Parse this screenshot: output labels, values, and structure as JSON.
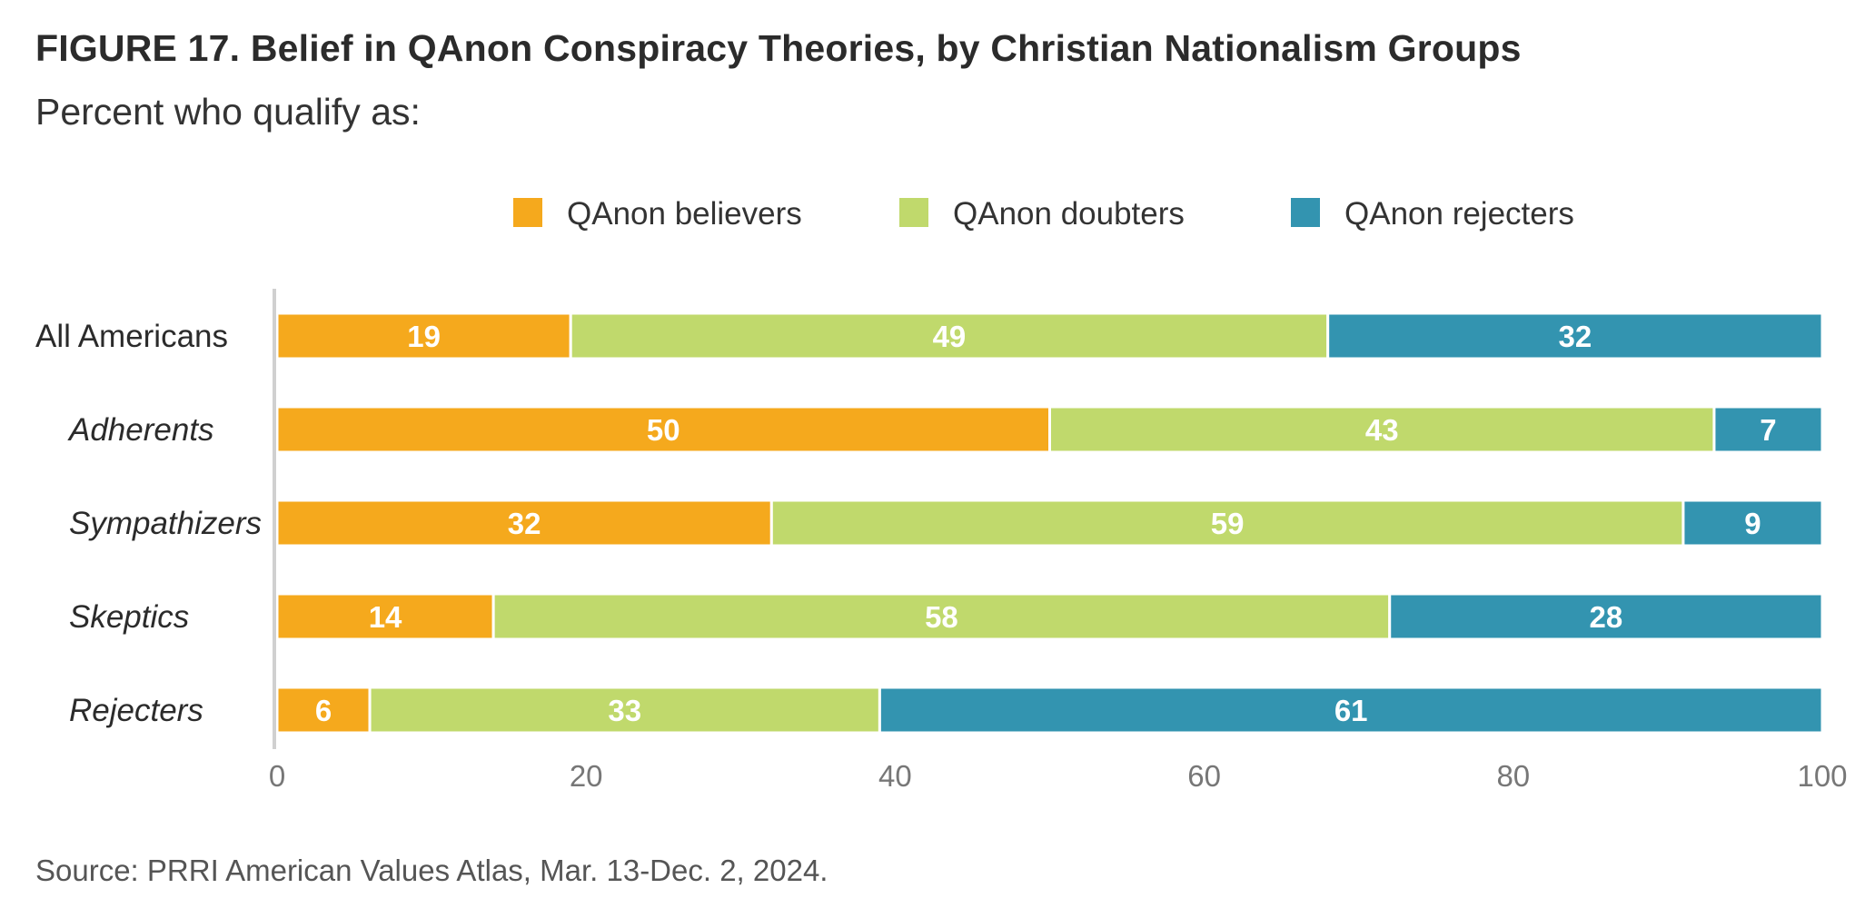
{
  "title": "FIGURE 17.  Belief in QAnon Conspiracy Theories, by Christian Nationalism Groups",
  "subtitle": "Percent who qualify as:",
  "source": "Source: PRRI American Values Atlas, Mar. 13-Dec. 2, 2024.",
  "chart_data": {
    "type": "bar",
    "orientation": "horizontal",
    "stacked": true,
    "categories": [
      "All Americans",
      "Adherents",
      "Sympathizers",
      "Skeptics",
      "Rejecters"
    ],
    "category_styles": [
      "normal",
      "italic",
      "italic",
      "italic",
      "italic"
    ],
    "series": [
      {
        "name": "QAnon believers",
        "color": "#F5A91D",
        "values": [
          19,
          50,
          32,
          14,
          6
        ]
      },
      {
        "name": "QAnon doubters",
        "color": "#C0D96C",
        "values": [
          49,
          43,
          59,
          58,
          33
        ]
      },
      {
        "name": "QAnon rejecters",
        "color": "#3394B0",
        "values": [
          32,
          7,
          9,
          28,
          61
        ]
      }
    ],
    "xlim": [
      0,
      100
    ],
    "xticks": [
      "0",
      "20",
      "40",
      "60",
      "80",
      "100"
    ],
    "xlabel": "",
    "ylabel": "",
    "legend": "top-center",
    "grid": false,
    "data_label_color": "#ffffff"
  }
}
